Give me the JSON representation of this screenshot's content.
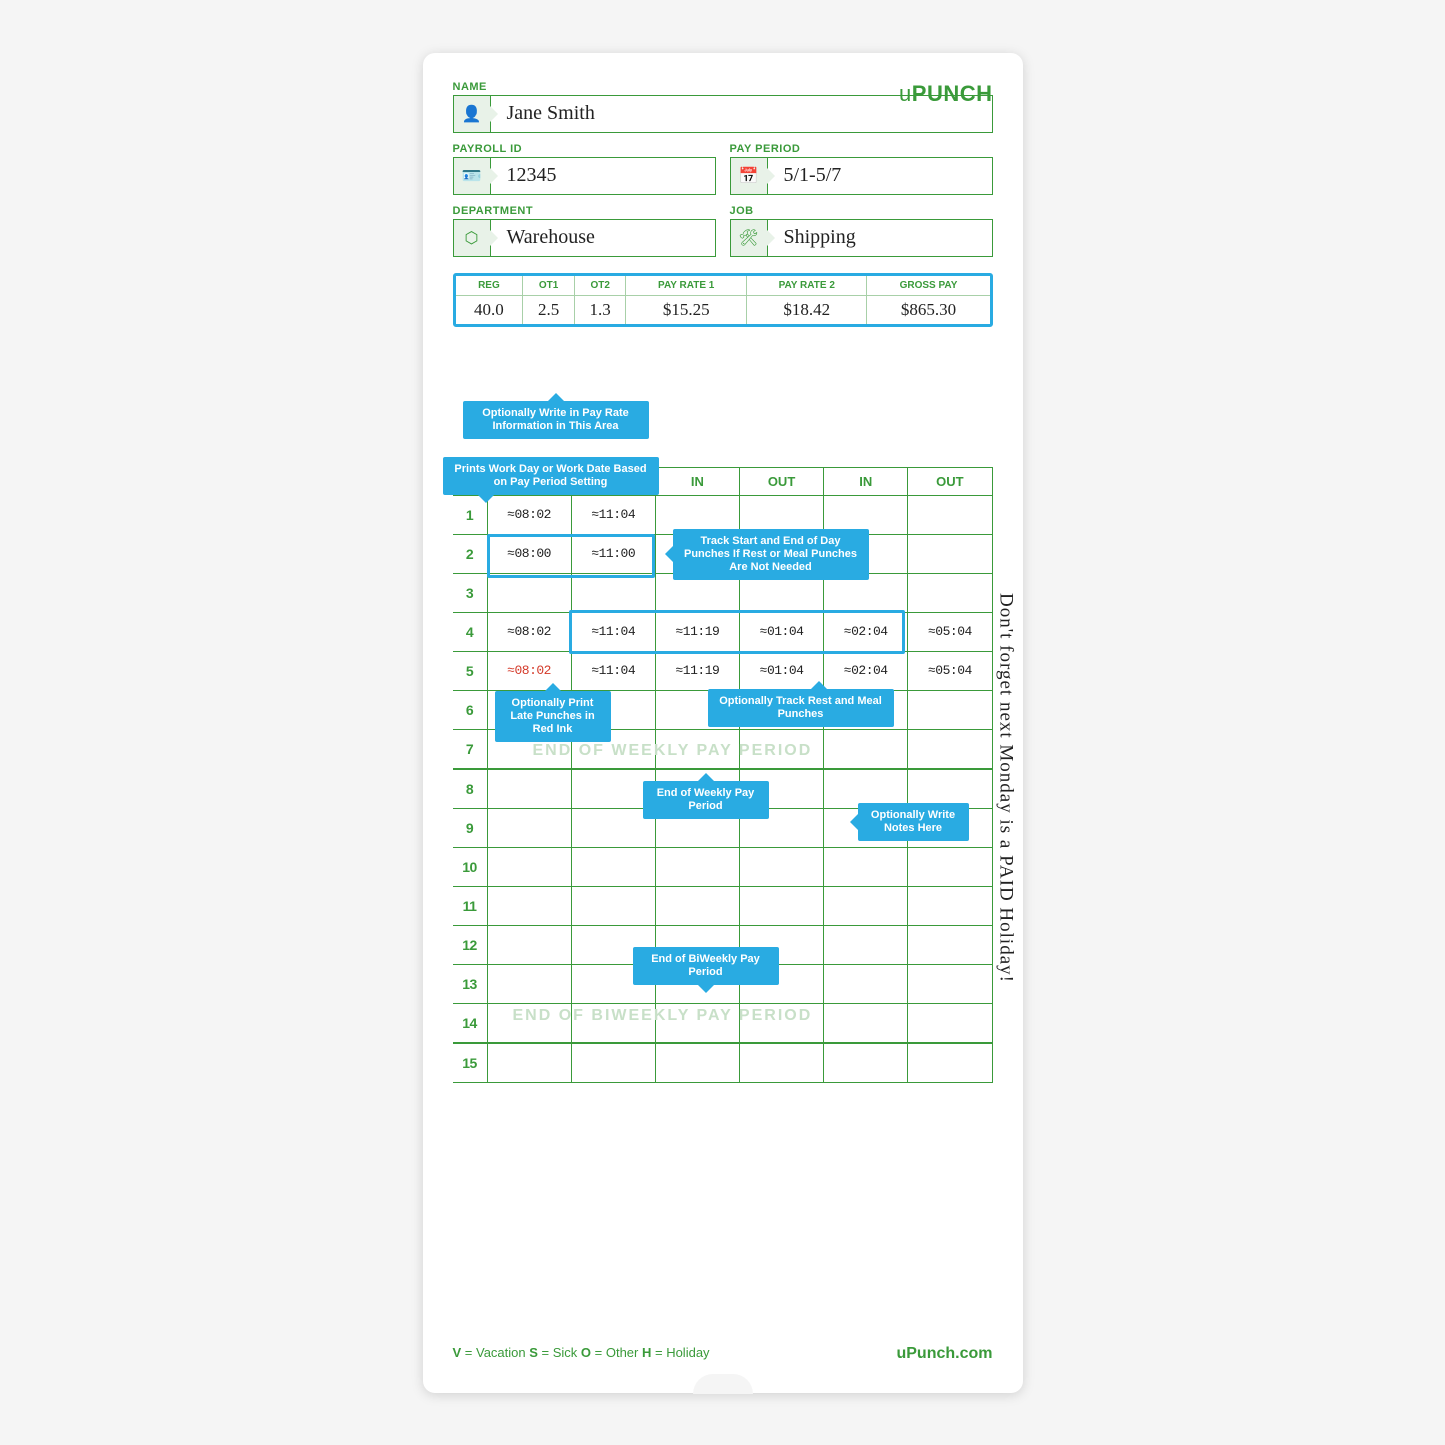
{
  "brand": "PUNCH",
  "brand_prefix": "u",
  "labels": {
    "name": "NAME",
    "payroll_id": "PAYROLL ID",
    "pay_period": "PAY PERIOD",
    "department": "DEPARTMENT",
    "job": "JOB"
  },
  "fields": {
    "name": "Jane Smith",
    "payroll_id": "12345",
    "pay_period": "5/1-5/7",
    "department": "Warehouse",
    "job": "Shipping"
  },
  "pay_summary": {
    "headers": [
      "REG",
      "OT1",
      "OT2",
      "PAY RATE 1",
      "PAY RATE 2",
      "GROSS PAY"
    ],
    "values": [
      "40.0",
      "2.5",
      "1.3",
      "$15.25",
      "$18.42",
      "$865.30"
    ]
  },
  "callouts": {
    "pay_rate": "Optionally Write in Pay Rate Information in This Area",
    "work_day": "Prints Work Day or Work Date Based on Pay Period Setting",
    "track_day": "Track Start and End of Day Punches If Rest or Meal Punches Are Not Needed",
    "late_red": "Optionally Print Late Punches in Red Ink",
    "rest_meal": "Optionally Track Rest and Meal Punches",
    "weekly_end": "End of Weekly Pay Period",
    "notes": "Optionally Write Notes Here",
    "biweekly_end": "End of BiWeekly Pay Period"
  },
  "grid": {
    "headers": [
      "",
      "IN",
      "OUT",
      "IN",
      "OUT",
      "IN",
      "OUT"
    ],
    "rows": [
      {
        "n": "1",
        "c": [
          "≈08:02",
          "≈11:04",
          "",
          "",
          "",
          ""
        ]
      },
      {
        "n": "2",
        "c": [
          "≈08:00",
          "≈11:00",
          "",
          "",
          "",
          ""
        ]
      },
      {
        "n": "3",
        "c": [
          "",
          "",
          "",
          "",
          "",
          ""
        ]
      },
      {
        "n": "4",
        "c": [
          "≈08:02",
          "≈11:04",
          "≈11:19",
          "≈01:04",
          "≈02:04",
          "≈05:04"
        ]
      },
      {
        "n": "5",
        "c": [
          "≈08:02",
          "≈11:04",
          "≈11:19",
          "≈01:04",
          "≈02:04",
          "≈05:04"
        ],
        "late": 0
      },
      {
        "n": "6",
        "c": [
          "",
          "",
          "",
          "",
          "",
          ""
        ]
      },
      {
        "n": "7",
        "c": [
          "",
          "",
          "",
          "",
          "",
          ""
        ]
      },
      {
        "n": "8",
        "c": [
          "",
          "",
          "",
          "",
          "",
          ""
        ]
      },
      {
        "n": "9",
        "c": [
          "",
          "",
          "",
          "",
          "",
          ""
        ]
      },
      {
        "n": "10",
        "c": [
          "",
          "",
          "",
          "",
          "",
          ""
        ]
      },
      {
        "n": "11",
        "c": [
          "",
          "",
          "",
          "",
          "",
          ""
        ]
      },
      {
        "n": "12",
        "c": [
          "",
          "",
          "",
          "",
          "",
          ""
        ]
      },
      {
        "n": "13",
        "c": [
          "",
          "",
          "",
          "",
          "",
          ""
        ]
      },
      {
        "n": "14",
        "c": [
          "",
          "",
          "",
          "",
          "",
          ""
        ]
      },
      {
        "n": "15",
        "c": [
          "",
          "",
          "",
          "",
          "",
          ""
        ]
      }
    ],
    "watermarks": {
      "weekly": "END OF WEEKLY PAY PERIOD",
      "biweekly": "END OF BIWEEKLY PAY PERIOD"
    }
  },
  "side_note": "Don't forget next Monday is a PAID Holiday!",
  "footer": {
    "legend_v": "V",
    "legend_v_t": " = Vacation  ",
    "legend_s": "S",
    "legend_s_t": " = Sick  ",
    "legend_o": "O",
    "legend_o_t": " = Other  ",
    "legend_h": "H",
    "legend_h_t": " = Holiday",
    "url": "uPunch.com"
  },
  "colors": {
    "green": "#3a9a3a",
    "blue": "#29abe2",
    "red": "#d43a2a"
  }
}
